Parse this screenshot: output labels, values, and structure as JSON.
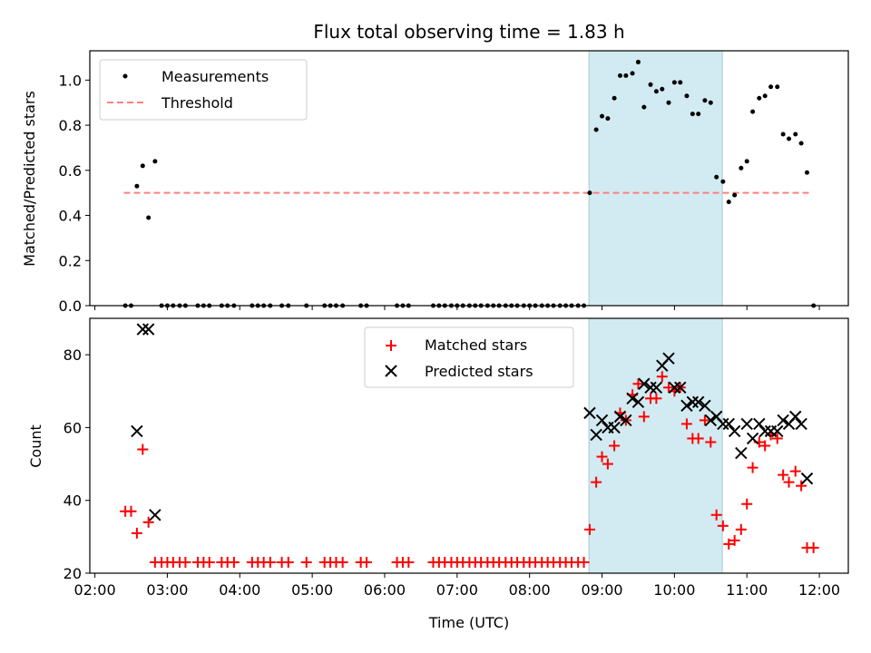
{
  "chart_data": {
    "type": "scatter",
    "title": "Flux total observing time = 1.83 h",
    "xlabel": "Time (UTC)",
    "x_ticks": [
      "02:00",
      "03:00",
      "04:00",
      "05:00",
      "06:00",
      "07:00",
      "08:00",
      "09:00",
      "10:00",
      "11:00",
      "12:00"
    ],
    "x_tick_hours": [
      2,
      3,
      4,
      5,
      6,
      7,
      8,
      9,
      10,
      11,
      12
    ],
    "xlim_hours": [
      1.93,
      12.4
    ],
    "highlight_span_hours": [
      8.82,
      10.66
    ],
    "highlight_color": "#add8e6",
    "top": {
      "ylabel": "Matched/Predicted stars",
      "ylim": [
        0,
        1.13
      ],
      "y_ticks": [
        "0.0",
        "0.2",
        "0.4",
        "0.6",
        "0.8",
        "1.0"
      ],
      "y_tick_values": [
        0,
        0.2,
        0.4,
        0.6,
        0.8,
        1.0
      ],
      "threshold": {
        "name": "Threshold",
        "value": 0.5,
        "x_start": 2.4,
        "x_end": 11.9,
        "color": "#ff7f7f"
      },
      "measurements": {
        "name": "Measurements",
        "color": "#000000",
        "points": [
          [
            2.42,
            0
          ],
          [
            2.5,
            0
          ],
          [
            2.58,
            0.53
          ],
          [
            2.66,
            0.62
          ],
          [
            2.74,
            0.39
          ],
          [
            2.83,
            0.64
          ],
          [
            2.92,
            0
          ],
          [
            3.0,
            0
          ],
          [
            3.08,
            0
          ],
          [
            3.17,
            0
          ],
          [
            3.25,
            0
          ],
          [
            3.42,
            0
          ],
          [
            3.5,
            0
          ],
          [
            3.58,
            0
          ],
          [
            3.75,
            0
          ],
          [
            3.83,
            0
          ],
          [
            3.92,
            0
          ],
          [
            4.17,
            0
          ],
          [
            4.25,
            0
          ],
          [
            4.33,
            0
          ],
          [
            4.42,
            0
          ],
          [
            4.58,
            0
          ],
          [
            4.67,
            0
          ],
          [
            4.92,
            0
          ],
          [
            5.17,
            0
          ],
          [
            5.25,
            0
          ],
          [
            5.33,
            0
          ],
          [
            5.42,
            0
          ],
          [
            5.67,
            0
          ],
          [
            5.75,
            0
          ],
          [
            6.17,
            0
          ],
          [
            6.25,
            0
          ],
          [
            6.33,
            0
          ],
          [
            6.67,
            0
          ],
          [
            6.75,
            0
          ],
          [
            6.83,
            0
          ],
          [
            6.92,
            0
          ],
          [
            7.0,
            0
          ],
          [
            7.08,
            0
          ],
          [
            7.17,
            0
          ],
          [
            7.25,
            0
          ],
          [
            7.33,
            0
          ],
          [
            7.42,
            0
          ],
          [
            7.5,
            0
          ],
          [
            7.58,
            0
          ],
          [
            7.67,
            0
          ],
          [
            7.75,
            0
          ],
          [
            7.83,
            0
          ],
          [
            7.92,
            0
          ],
          [
            8.0,
            0
          ],
          [
            8.08,
            0
          ],
          [
            8.17,
            0
          ],
          [
            8.25,
            0
          ],
          [
            8.33,
            0
          ],
          [
            8.42,
            0
          ],
          [
            8.5,
            0
          ],
          [
            8.58,
            0
          ],
          [
            8.67,
            0
          ],
          [
            8.75,
            0
          ],
          [
            8.83,
            0.5
          ],
          [
            8.92,
            0.78
          ],
          [
            9.0,
            0.84
          ],
          [
            9.08,
            0.83
          ],
          [
            9.17,
            0.92
          ],
          [
            9.25,
            1.02
          ],
          [
            9.33,
            1.02
          ],
          [
            9.42,
            1.03
          ],
          [
            9.5,
            1.08
          ],
          [
            9.58,
            0.88
          ],
          [
            9.67,
            0.98
          ],
          [
            9.75,
            0.95
          ],
          [
            9.83,
            0.96
          ],
          [
            9.92,
            0.9
          ],
          [
            10.0,
            0.99
          ],
          [
            10.08,
            0.99
          ],
          [
            10.17,
            0.93
          ],
          [
            10.25,
            0.85
          ],
          [
            10.33,
            0.85
          ],
          [
            10.42,
            0.91
          ],
          [
            10.5,
            0.9
          ],
          [
            10.58,
            0.57
          ],
          [
            10.67,
            0.55
          ],
          [
            10.75,
            0.46
          ],
          [
            10.83,
            0.49
          ],
          [
            10.92,
            0.61
          ],
          [
            11.0,
            0.64
          ],
          [
            11.08,
            0.86
          ],
          [
            11.17,
            0.92
          ],
          [
            11.25,
            0.93
          ],
          [
            11.33,
            0.97
          ],
          [
            11.42,
            0.97
          ],
          [
            11.5,
            0.76
          ],
          [
            11.58,
            0.74
          ],
          [
            11.67,
            0.76
          ],
          [
            11.75,
            0.72
          ],
          [
            11.83,
            0.59
          ],
          [
            11.92,
            0
          ]
        ]
      }
    },
    "bottom": {
      "ylabel": "Count",
      "ylim": [
        20,
        90
      ],
      "y_ticks": [
        "20",
        "40",
        "60",
        "80"
      ],
      "y_tick_values": [
        20,
        40,
        60,
        80
      ],
      "matched": {
        "name": "Matched stars",
        "color": "#ff0000",
        "points": [
          [
            2.42,
            37
          ],
          [
            2.5,
            37
          ],
          [
            2.58,
            31
          ],
          [
            2.66,
            54
          ],
          [
            2.74,
            34
          ],
          [
            2.83,
            23
          ],
          [
            2.92,
            23
          ],
          [
            3.0,
            23
          ],
          [
            3.08,
            23
          ],
          [
            3.17,
            23
          ],
          [
            3.25,
            23
          ],
          [
            3.42,
            23
          ],
          [
            3.5,
            23
          ],
          [
            3.58,
            23
          ],
          [
            3.75,
            23
          ],
          [
            3.83,
            23
          ],
          [
            3.92,
            23
          ],
          [
            4.17,
            23
          ],
          [
            4.25,
            23
          ],
          [
            4.33,
            23
          ],
          [
            4.42,
            23
          ],
          [
            4.58,
            23
          ],
          [
            4.67,
            23
          ],
          [
            4.92,
            23
          ],
          [
            5.17,
            23
          ],
          [
            5.25,
            23
          ],
          [
            5.33,
            23
          ],
          [
            5.42,
            23
          ],
          [
            5.67,
            23
          ],
          [
            5.75,
            23
          ],
          [
            6.17,
            23
          ],
          [
            6.25,
            23
          ],
          [
            6.33,
            23
          ],
          [
            6.67,
            23
          ],
          [
            6.75,
            23
          ],
          [
            6.83,
            23
          ],
          [
            6.92,
            23
          ],
          [
            7.0,
            23
          ],
          [
            7.08,
            23
          ],
          [
            7.17,
            23
          ],
          [
            7.25,
            23
          ],
          [
            7.33,
            23
          ],
          [
            7.42,
            23
          ],
          [
            7.5,
            23
          ],
          [
            7.58,
            23
          ],
          [
            7.67,
            23
          ],
          [
            7.75,
            23
          ],
          [
            7.83,
            23
          ],
          [
            7.92,
            23
          ],
          [
            8.0,
            23
          ],
          [
            8.08,
            23
          ],
          [
            8.17,
            23
          ],
          [
            8.25,
            23
          ],
          [
            8.33,
            23
          ],
          [
            8.42,
            23
          ],
          [
            8.5,
            23
          ],
          [
            8.58,
            23
          ],
          [
            8.67,
            23
          ],
          [
            8.75,
            23
          ],
          [
            8.83,
            32
          ],
          [
            8.92,
            45
          ],
          [
            9.0,
            52
          ],
          [
            9.08,
            50
          ],
          [
            9.17,
            55
          ],
          [
            9.25,
            64
          ],
          [
            9.33,
            62
          ],
          [
            9.42,
            69
          ],
          [
            9.5,
            72
          ],
          [
            9.58,
            63
          ],
          [
            9.67,
            68
          ],
          [
            9.75,
            68
          ],
          [
            9.83,
            74
          ],
          [
            9.92,
            71
          ],
          [
            10.0,
            70
          ],
          [
            10.08,
            71
          ],
          [
            10.17,
            61
          ],
          [
            10.25,
            57
          ],
          [
            10.33,
            57
          ],
          [
            10.42,
            62
          ],
          [
            10.5,
            56
          ],
          [
            10.58,
            36
          ],
          [
            10.67,
            33
          ],
          [
            10.75,
            28
          ],
          [
            10.83,
            29
          ],
          [
            10.92,
            32
          ],
          [
            11.0,
            39
          ],
          [
            11.08,
            49
          ],
          [
            11.17,
            56
          ],
          [
            11.25,
            55
          ],
          [
            11.33,
            58
          ],
          [
            11.42,
            57
          ],
          [
            11.5,
            47
          ],
          [
            11.58,
            45
          ],
          [
            11.67,
            48
          ],
          [
            11.75,
            44
          ],
          [
            11.83,
            27
          ],
          [
            11.92,
            27
          ]
        ]
      },
      "predicted": {
        "name": "Predicted stars",
        "color": "#000000",
        "points": [
          [
            2.58,
            59
          ],
          [
            2.66,
            87
          ],
          [
            2.74,
            87
          ],
          [
            2.83,
            36
          ],
          [
            8.83,
            64
          ],
          [
            8.92,
            58
          ],
          [
            9.0,
            62
          ],
          [
            9.08,
            60
          ],
          [
            9.17,
            60
          ],
          [
            9.25,
            63
          ],
          [
            9.33,
            62
          ],
          [
            9.42,
            68
          ],
          [
            9.5,
            67
          ],
          [
            9.58,
            72
          ],
          [
            9.67,
            71
          ],
          [
            9.75,
            71
          ],
          [
            9.83,
            77
          ],
          [
            9.92,
            79
          ],
          [
            10.0,
            71
          ],
          [
            10.08,
            71
          ],
          [
            10.17,
            66
          ],
          [
            10.25,
            67
          ],
          [
            10.33,
            67
          ],
          [
            10.42,
            66
          ],
          [
            10.5,
            62
          ],
          [
            10.58,
            63
          ],
          [
            10.67,
            61
          ],
          [
            10.75,
            61
          ],
          [
            10.83,
            59
          ],
          [
            10.92,
            53
          ],
          [
            11.0,
            61
          ],
          [
            11.08,
            57
          ],
          [
            11.17,
            61
          ],
          [
            11.25,
            59
          ],
          [
            11.33,
            59
          ],
          [
            11.42,
            59
          ],
          [
            11.5,
            62
          ],
          [
            11.58,
            61
          ],
          [
            11.67,
            63
          ],
          [
            11.75,
            61
          ],
          [
            11.83,
            46
          ]
        ]
      }
    }
  }
}
